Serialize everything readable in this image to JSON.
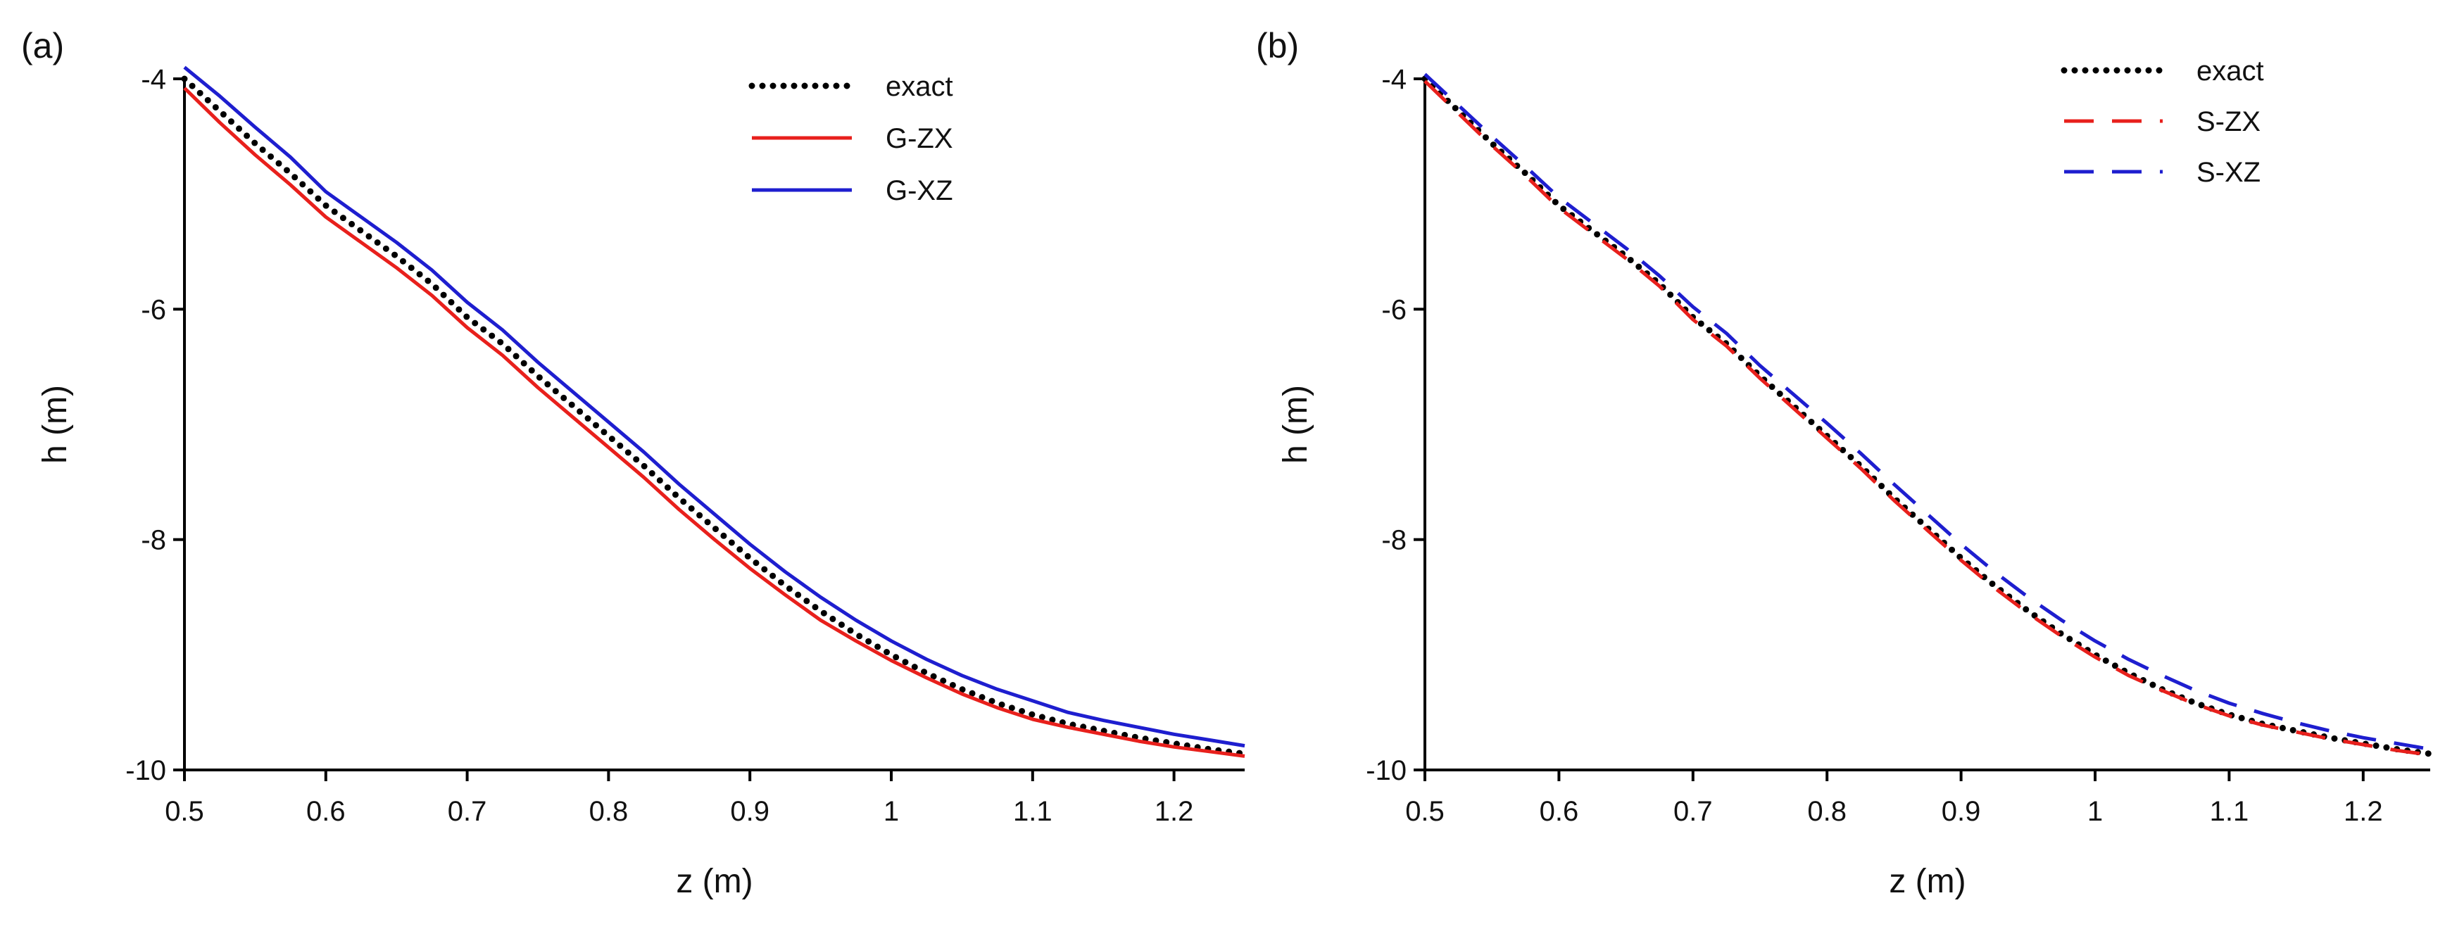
{
  "chart_data": [
    {
      "panel_label": "(a)",
      "type": "line",
      "xlabel": "z (m)",
      "ylabel": "h (m)",
      "xlim": [
        0.5,
        1.25
      ],
      "ylim": [
        -10,
        -4
      ],
      "x_ticks": [
        0.5,
        0.6,
        0.7,
        0.8,
        0.9,
        1,
        1.1,
        1.2
      ],
      "x_tick_labels": [
        "0.5",
        "0.6",
        "0.7",
        "0.8",
        "0.9",
        "1",
        "1.1",
        "1.2"
      ],
      "y_ticks": [
        -4,
        -6,
        -8,
        -10
      ],
      "y_tick_labels": [
        "-4",
        "-6",
        "-8",
        "-10"
      ],
      "grid": false,
      "legend_position": "top-right",
      "series": [
        {
          "name": "exact",
          "color": "#000000",
          "style": "dotted",
          "x": [
            0.5,
            0.525,
            0.55,
            0.575,
            0.6,
            0.625,
            0.65,
            0.675,
            0.7,
            0.725,
            0.75,
            0.775,
            0.8,
            0.825,
            0.85,
            0.875,
            0.9,
            0.925,
            0.95,
            0.975,
            1.0,
            1.025,
            1.05,
            1.075,
            1.1,
            1.125,
            1.15,
            1.175,
            1.2,
            1.225,
            1.25
          ],
          "y": [
            -4.0,
            -4.28,
            -4.56,
            -4.82,
            -5.1,
            -5.32,
            -5.54,
            -5.78,
            -6.07,
            -6.3,
            -6.58,
            -6.84,
            -7.1,
            -7.36,
            -7.64,
            -7.9,
            -8.16,
            -8.4,
            -8.62,
            -8.82,
            -9.0,
            -9.16,
            -9.3,
            -9.42,
            -9.52,
            -9.6,
            -9.66,
            -9.72,
            -9.77,
            -9.82,
            -9.86
          ]
        },
        {
          "name": "G-ZX",
          "color": "#e8201c",
          "style": "solid",
          "x": [
            0.5,
            0.525,
            0.55,
            0.575,
            0.6,
            0.625,
            0.65,
            0.675,
            0.7,
            0.725,
            0.75,
            0.775,
            0.8,
            0.825,
            0.85,
            0.875,
            0.9,
            0.925,
            0.95,
            0.975,
            1.0,
            1.025,
            1.05,
            1.075,
            1.1,
            1.125,
            1.15,
            1.175,
            1.2,
            1.225,
            1.25
          ],
          "y": [
            -4.08,
            -4.38,
            -4.66,
            -4.92,
            -5.2,
            -5.42,
            -5.64,
            -5.88,
            -6.16,
            -6.4,
            -6.68,
            -6.94,
            -7.2,
            -7.46,
            -7.74,
            -8.0,
            -8.25,
            -8.48,
            -8.7,
            -8.88,
            -9.05,
            -9.2,
            -9.34,
            -9.46,
            -9.56,
            -9.63,
            -9.69,
            -9.75,
            -9.8,
            -9.84,
            -9.88
          ]
        },
        {
          "name": "G-XZ",
          "color": "#1e1ecf",
          "style": "solid",
          "x": [
            0.5,
            0.525,
            0.55,
            0.575,
            0.6,
            0.625,
            0.65,
            0.675,
            0.7,
            0.725,
            0.75,
            0.775,
            0.8,
            0.825,
            0.85,
            0.875,
            0.9,
            0.925,
            0.95,
            0.975,
            1.0,
            1.025,
            1.05,
            1.075,
            1.1,
            1.125,
            1.15,
            1.175,
            1.2,
            1.225,
            1.25
          ],
          "y": [
            -3.9,
            -4.15,
            -4.42,
            -4.68,
            -4.98,
            -5.2,
            -5.42,
            -5.66,
            -5.94,
            -6.18,
            -6.46,
            -6.72,
            -6.98,
            -7.24,
            -7.52,
            -7.78,
            -8.04,
            -8.28,
            -8.5,
            -8.7,
            -8.88,
            -9.04,
            -9.18,
            -9.3,
            -9.4,
            -9.5,
            -9.57,
            -9.63,
            -9.69,
            -9.74,
            -9.79
          ]
        }
      ]
    },
    {
      "panel_label": "(b)",
      "type": "line",
      "xlabel": "z (m)",
      "ylabel": "h (m)",
      "xlim": [
        0.5,
        1.25
      ],
      "ylim": [
        -10,
        -4
      ],
      "x_ticks": [
        0.5,
        0.6,
        0.7,
        0.8,
        0.9,
        1,
        1.1,
        1.2
      ],
      "x_tick_labels": [
        "0.5",
        "0.6",
        "0.7",
        "0.8",
        "0.9",
        "1",
        "1.1",
        "1.2"
      ],
      "y_ticks": [
        -4,
        -6,
        -8,
        -10
      ],
      "y_tick_labels": [
        "-4",
        "-6",
        "-8",
        "-10"
      ],
      "grid": false,
      "legend_position": "top-right",
      "series": [
        {
          "name": "exact",
          "color": "#000000",
          "style": "dotted",
          "x": [
            0.5,
            0.525,
            0.55,
            0.575,
            0.6,
            0.625,
            0.65,
            0.675,
            0.7,
            0.725,
            0.75,
            0.775,
            0.8,
            0.825,
            0.85,
            0.875,
            0.9,
            0.925,
            0.95,
            0.975,
            1.0,
            1.025,
            1.05,
            1.075,
            1.1,
            1.125,
            1.15,
            1.175,
            1.2,
            1.225,
            1.25
          ],
          "y": [
            -4.0,
            -4.28,
            -4.56,
            -4.82,
            -5.1,
            -5.32,
            -5.54,
            -5.78,
            -6.07,
            -6.3,
            -6.58,
            -6.84,
            -7.1,
            -7.36,
            -7.64,
            -7.9,
            -8.16,
            -8.4,
            -8.62,
            -8.82,
            -9.0,
            -9.16,
            -9.3,
            -9.42,
            -9.52,
            -9.6,
            -9.66,
            -9.72,
            -9.77,
            -9.82,
            -9.86
          ]
        },
        {
          "name": "S-ZX",
          "color": "#e8201c",
          "style": "dashed",
          "x": [
            0.5,
            0.525,
            0.55,
            0.575,
            0.6,
            0.625,
            0.65,
            0.675,
            0.7,
            0.725,
            0.75,
            0.775,
            0.8,
            0.825,
            0.85,
            0.875,
            0.9,
            0.925,
            0.95,
            0.975,
            1.0,
            1.025,
            1.05,
            1.075,
            1.1,
            1.125,
            1.15,
            1.175,
            1.2,
            1.225,
            1.25
          ],
          "y": [
            -4.02,
            -4.3,
            -4.58,
            -4.84,
            -5.12,
            -5.34,
            -5.56,
            -5.8,
            -6.09,
            -6.32,
            -6.6,
            -6.86,
            -7.12,
            -7.38,
            -7.66,
            -7.92,
            -8.18,
            -8.42,
            -8.64,
            -8.84,
            -9.02,
            -9.18,
            -9.31,
            -9.43,
            -9.53,
            -9.61,
            -9.67,
            -9.73,
            -9.78,
            -9.83,
            -9.87
          ]
        },
        {
          "name": "S-XZ",
          "color": "#1e1ecf",
          "style": "dashed",
          "x": [
            0.5,
            0.525,
            0.55,
            0.575,
            0.6,
            0.625,
            0.65,
            0.675,
            0.7,
            0.725,
            0.75,
            0.775,
            0.8,
            0.825,
            0.85,
            0.875,
            0.9,
            0.925,
            0.95,
            0.975,
            1.0,
            1.025,
            1.05,
            1.075,
            1.1,
            1.125,
            1.15,
            1.175,
            1.2,
            1.225,
            1.25
          ],
          "y": [
            -3.96,
            -4.23,
            -4.5,
            -4.76,
            -5.03,
            -5.25,
            -5.47,
            -5.71,
            -5.98,
            -6.21,
            -6.49,
            -6.74,
            -6.99,
            -7.25,
            -7.52,
            -7.78,
            -8.04,
            -8.28,
            -8.5,
            -8.7,
            -8.88,
            -9.04,
            -9.18,
            -9.31,
            -9.42,
            -9.51,
            -9.59,
            -9.66,
            -9.72,
            -9.77,
            -9.82
          ]
        }
      ]
    }
  ]
}
